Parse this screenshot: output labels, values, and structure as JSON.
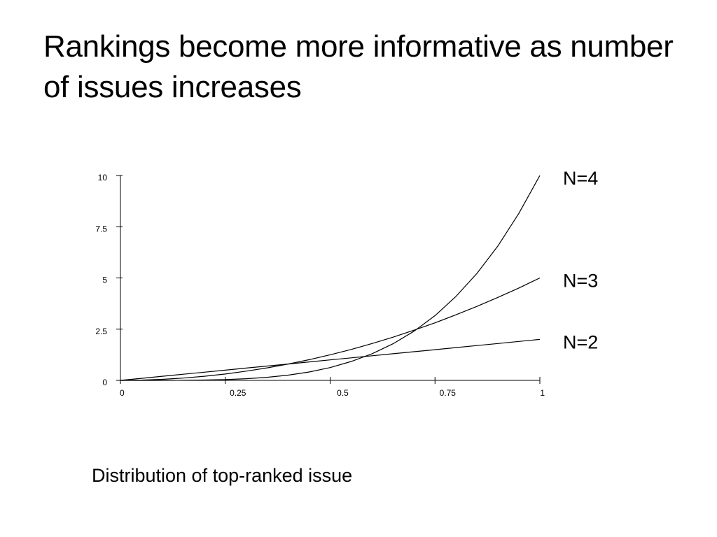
{
  "slide": {
    "title": "Rankings become more informative as number of issues increases",
    "caption": "Distribution of top-ranked issue"
  },
  "chart_data": {
    "type": "line",
    "title": "",
    "xlabel": "",
    "ylabel": "",
    "xlim": [
      0,
      1
    ],
    "ylim": [
      0,
      10
    ],
    "x_ticks": [
      0,
      0.25,
      0.5,
      0.75,
      1
    ],
    "x_tick_labels": [
      "0",
      "0.25",
      "0.5",
      "0.75",
      "1"
    ],
    "y_ticks": [
      0,
      2.5,
      5,
      7.5,
      10
    ],
    "y_tick_labels": [
      "0",
      "2.5",
      "5",
      "7.5",
      "10"
    ],
    "grid": false,
    "legend": "none",
    "line_color": "#000000",
    "x": [
      0,
      0.05,
      0.1,
      0.15,
      0.2,
      0.25,
      0.3,
      0.35,
      0.4,
      0.45,
      0.5,
      0.55,
      0.6,
      0.65,
      0.7,
      0.75,
      0.8,
      0.85,
      0.9,
      0.95,
      1
    ],
    "series": [
      {
        "name": "N=2",
        "label": "N=2",
        "values": [
          0,
          0.1,
          0.2,
          0.3,
          0.4,
          0.5,
          0.6,
          0.7,
          0.8,
          0.9,
          1.0,
          1.1,
          1.2,
          1.3,
          1.4,
          1.5,
          1.6,
          1.7,
          1.8,
          1.9,
          2.0
        ]
      },
      {
        "name": "N=3",
        "label": "N=3",
        "values": [
          0,
          0.0125,
          0.05,
          0.1125,
          0.2,
          0.31,
          0.45,
          0.61,
          0.8,
          1.01,
          1.25,
          1.51,
          1.8,
          2.11,
          2.45,
          2.81,
          3.2,
          3.61,
          4.05,
          4.51,
          5.0
        ]
      },
      {
        "name": "N=4",
        "label": "N=4",
        "values": [
          0,
          0.0001,
          0.0013,
          0.0051,
          0.016,
          0.039,
          0.081,
          0.15,
          0.256,
          0.41,
          0.625,
          0.92,
          1.3,
          1.79,
          2.4,
          3.16,
          4.1,
          5.22,
          6.56,
          8.15,
          10.0
        ]
      }
    ]
  }
}
